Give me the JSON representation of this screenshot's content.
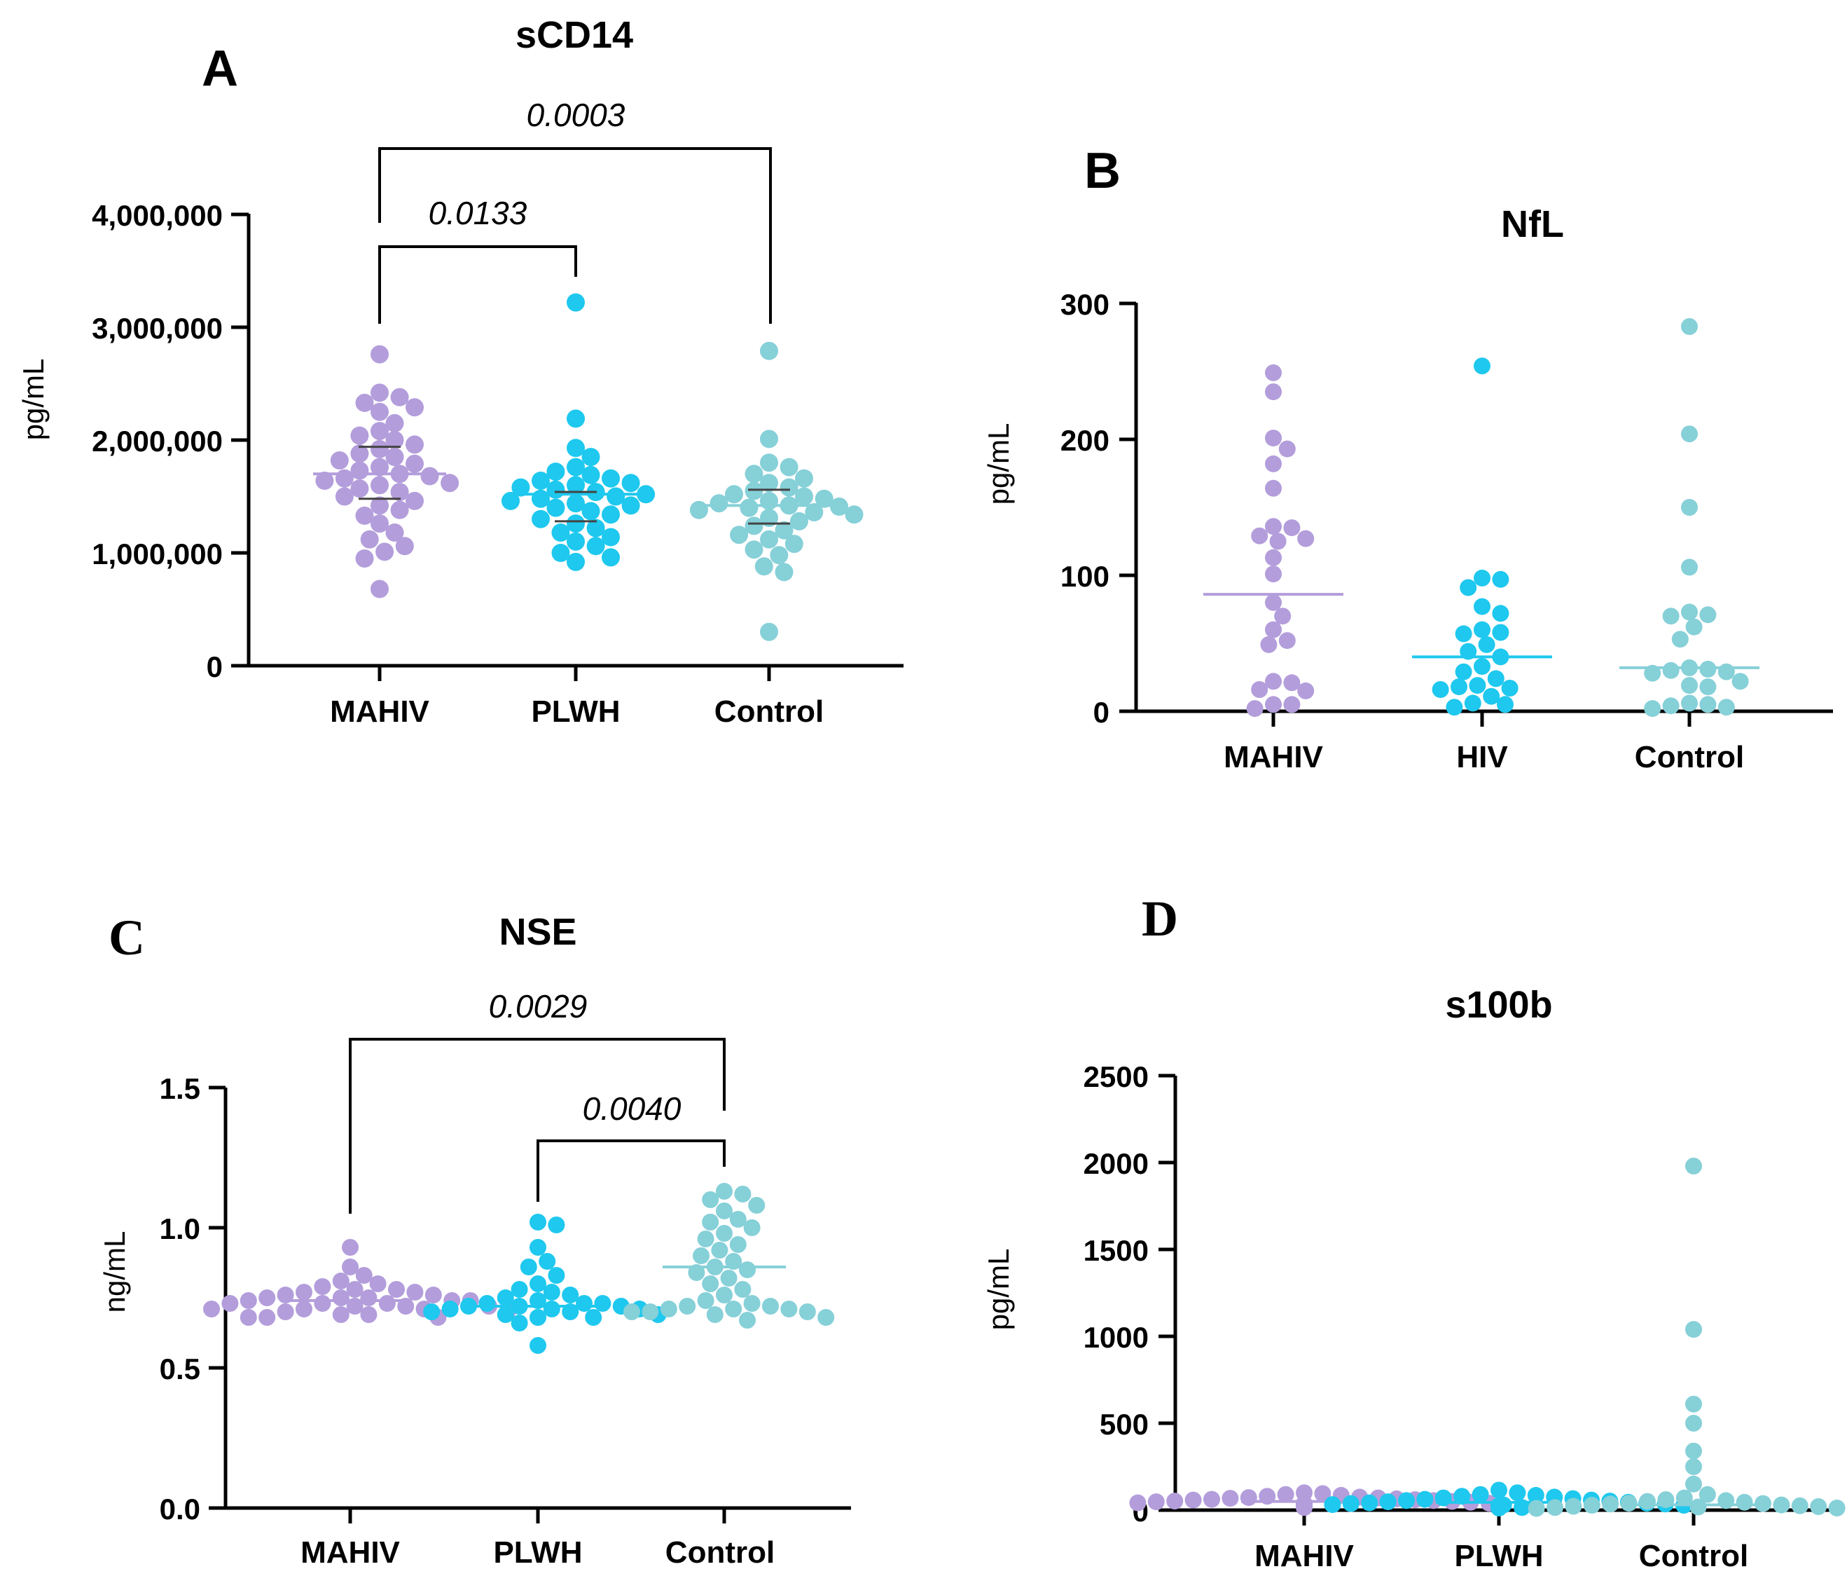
{
  "colors": {
    "MAHIV": "#b39ddb",
    "PLWH": "#1ec8ee",
    "Control": "#86d0d8"
  },
  "chart_data": [
    {
      "id": "A",
      "panel_label": "A",
      "type": "scatter",
      "title": "sCD14",
      "ylabel": "pg/mL",
      "ylim": [
        0,
        4000000
      ],
      "yticks": [
        0,
        1000000,
        2000000,
        3000000,
        4000000
      ],
      "ytick_labels": [
        "0",
        "1,000,000",
        "2,000,000",
        "3,000,000",
        "4,000,000"
      ],
      "categories": [
        "MAHIV",
        "PLWH",
        "Control"
      ],
      "series": [
        {
          "name": "MAHIV",
          "mean": 1700000,
          "sd_range": [
            1480000,
            1940000
          ],
          "values": [
            2760000,
            2420000,
            2380000,
            2330000,
            2290000,
            2250000,
            2150000,
            2080000,
            2040000,
            2000000,
            1960000,
            1920000,
            1880000,
            1850000,
            1820000,
            1790000,
            1760000,
            1730000,
            1700000,
            1680000,
            1660000,
            1640000,
            1620000,
            1600000,
            1570000,
            1540000,
            1500000,
            1460000,
            1420000,
            1380000,
            1330000,
            1260000,
            1180000,
            1120000,
            1060000,
            1010000,
            950000,
            680000
          ]
        },
        {
          "name": "PLWH",
          "mean": 1520000,
          "sd_range": [
            1280000,
            1540000
          ],
          "values": [
            3220000,
            2190000,
            1930000,
            1850000,
            1760000,
            1720000,
            1690000,
            1660000,
            1640000,
            1620000,
            1600000,
            1580000,
            1560000,
            1540000,
            1520000,
            1500000,
            1480000,
            1460000,
            1440000,
            1420000,
            1400000,
            1370000,
            1340000,
            1300000,
            1260000,
            1220000,
            1180000,
            1140000,
            1100000,
            1060000,
            1000000,
            960000,
            920000
          ]
        },
        {
          "name": "Control",
          "mean": 1420000,
          "sd_range": [
            1260000,
            1560000
          ],
          "values": [
            2790000,
            2010000,
            1800000,
            1760000,
            1700000,
            1660000,
            1620000,
            1580000,
            1550000,
            1520000,
            1500000,
            1480000,
            1460000,
            1440000,
            1420000,
            1410000,
            1400000,
            1380000,
            1360000,
            1340000,
            1310000,
            1280000,
            1240000,
            1200000,
            1160000,
            1120000,
            1080000,
            1030000,
            980000,
            880000,
            830000,
            300000
          ]
        }
      ],
      "comparisons": [
        {
          "from": "MAHIV",
          "to": "PLWH",
          "p": "0.0133"
        },
        {
          "from": "MAHIV",
          "to": "Control",
          "p": "0.0003"
        }
      ]
    },
    {
      "id": "B",
      "panel_label": "B",
      "type": "scatter",
      "title": "NfL",
      "ylabel": "pg/mL",
      "ylim": [
        0,
        300
      ],
      "yticks": [
        0,
        100,
        200,
        300
      ],
      "ytick_labels": [
        "0",
        "100",
        "200",
        "300"
      ],
      "categories": [
        "MAHIV",
        "HIV",
        "Control"
      ],
      "series": [
        {
          "name": "MAHIV",
          "mean": 86,
          "values": [
            249,
            235,
            201,
            193,
            182,
            164,
            136,
            135,
            129,
            127,
            125,
            113,
            101,
            80,
            70,
            60,
            52,
            49,
            22,
            21,
            16,
            15,
            5,
            5,
            2
          ]
        },
        {
          "name": "HIV",
          "mean": 40,
          "values": [
            254,
            98,
            97,
            91,
            77,
            72,
            60,
            58,
            57,
            49,
            44,
            40,
            33,
            29,
            24,
            19,
            18,
            17,
            16,
            11,
            6,
            5,
            3
          ]
        },
        {
          "name": "Control",
          "mean": 32,
          "values": [
            283,
            204,
            150,
            106,
            73,
            71,
            70,
            62,
            53,
            32,
            31,
            30,
            29,
            28,
            22,
            19,
            18,
            6,
            5,
            4,
            3,
            2
          ]
        }
      ],
      "comparisons": []
    },
    {
      "id": "C",
      "panel_label": "C",
      "type": "scatter",
      "title": "NSE",
      "ylabel": "ng/mL",
      "ylim": [
        0,
        1.5
      ],
      "yticks": [
        0,
        0.5,
        1.0,
        1.5
      ],
      "ytick_labels": [
        "0.0",
        "0.5",
        "1.0",
        "1.5"
      ],
      "categories": [
        "MAHIV",
        "PLWH",
        "Control"
      ],
      "series": [
        {
          "name": "MAHIV",
          "mean": 0.74,
          "values": [
            0.93,
            0.86,
            0.83,
            0.81,
            0.8,
            0.79,
            0.78,
            0.78,
            0.77,
            0.77,
            0.76,
            0.76,
            0.75,
            0.75,
            0.75,
            0.74,
            0.74,
            0.74,
            0.73,
            0.73,
            0.73,
            0.72,
            0.72,
            0.72,
            0.71,
            0.71,
            0.71,
            0.7,
            0.7,
            0.69,
            0.69,
            0.68,
            0.68,
            0.68
          ]
        },
        {
          "name": "PLWH",
          "mean": 0.72,
          "values": [
            1.02,
            1.01,
            0.93,
            0.88,
            0.86,
            0.83,
            0.8,
            0.78,
            0.77,
            0.76,
            0.75,
            0.74,
            0.73,
            0.73,
            0.73,
            0.72,
            0.72,
            0.72,
            0.71,
            0.71,
            0.71,
            0.7,
            0.7,
            0.69,
            0.69,
            0.68,
            0.68,
            0.66,
            0.58
          ]
        },
        {
          "name": "Control",
          "mean": 0.86,
          "values": [
            1.13,
            1.12,
            1.1,
            1.08,
            1.06,
            1.03,
            1.02,
            1.0,
            0.98,
            0.96,
            0.94,
            0.92,
            0.9,
            0.88,
            0.86,
            0.85,
            0.84,
            0.82,
            0.8,
            0.78,
            0.76,
            0.74,
            0.73,
            0.72,
            0.72,
            0.71,
            0.71,
            0.71,
            0.7,
            0.7,
            0.7,
            0.69,
            0.68,
            0.67
          ]
        }
      ],
      "comparisons": [
        {
          "from": "PLWH",
          "to": "Control",
          "p": "0.0040"
        },
        {
          "from": "MAHIV",
          "to": "Control",
          "p": "0.0029"
        }
      ]
    },
    {
      "id": "D",
      "panel_label": "D",
      "type": "scatter",
      "title": "s100b",
      "ylabel": "pg/mL",
      "ylim": [
        0,
        2500
      ],
      "yticks": [
        0,
        500,
        1000,
        1500,
        2000,
        2500
      ],
      "ytick_labels": [
        "0",
        "500",
        "1000",
        "1500",
        "2000",
        "2500"
      ],
      "categories": [
        "MAHIV",
        "PLWH",
        "Control"
      ],
      "series": [
        {
          "name": "MAHIV",
          "mean": 50,
          "values": [
            100,
            95,
            90,
            85,
            80,
            75,
            72,
            70,
            68,
            65,
            62,
            60,
            58,
            55,
            52,
            50,
            48,
            45,
            42,
            40,
            38,
            35,
            32,
            30,
            28,
            25,
            22,
            20,
            18,
            15
          ]
        },
        {
          "name": "PLWH",
          "mean": 45,
          "values": [
            115,
            100,
            90,
            85,
            80,
            75,
            70,
            66,
            62,
            58,
            55,
            52,
            48,
            45,
            42,
            40,
            38,
            35,
            32,
            30,
            28,
            25,
            22,
            20,
            18,
            15,
            12
          ]
        },
        {
          "name": "Control",
          "mean": 30,
          "values": [
            1980,
            1040,
            610,
            500,
            340,
            250,
            150,
            90,
            70,
            60,
            55,
            50,
            45,
            40,
            38,
            35,
            30,
            28,
            25,
            22,
            20,
            18,
            15,
            12,
            10,
            8
          ]
        }
      ],
      "comparisons": []
    }
  ]
}
